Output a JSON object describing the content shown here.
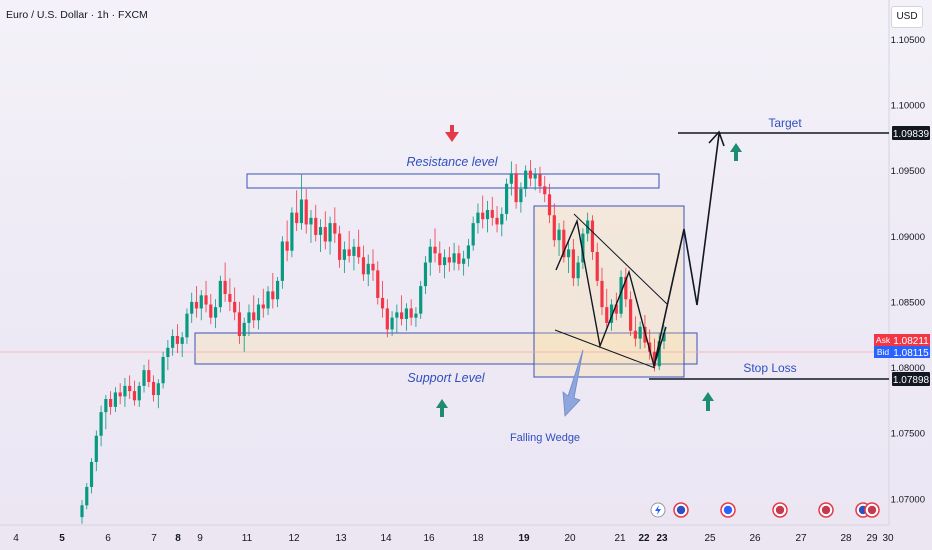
{
  "header": {
    "title": "Euro / U.S. Dollar · 1h · FXCM",
    "currency": "USD"
  },
  "chart_data": {
    "type": "candlestick",
    "instrument": "Euro / U.S. Dollar",
    "timeframe": "1h",
    "source": "FXCM",
    "ylim": [
      1.068,
      1.108
    ],
    "y_ticks": [
      "1.10500",
      "1.10000",
      "1.09500",
      "1.09000",
      "1.08500",
      "1.08000",
      "1.07500",
      "1.07000"
    ],
    "x_ticks": [
      "4",
      "5",
      "6",
      "7",
      "8",
      "9",
      "11",
      "12",
      "13",
      "14",
      "16",
      "18",
      "19",
      "20",
      "21",
      "22",
      "23",
      "25",
      "26",
      "27",
      "28",
      "29",
      "30"
    ],
    "x_bold_ticks": [
      "5",
      "8",
      "19",
      "22",
      "23"
    ],
    "price_markers": {
      "ask_label": "Ask",
      "ask": "1.08211",
      "bid_label": "Bid",
      "bid": "1.08115",
      "target": "1.09839",
      "stop_loss": "1.07898"
    },
    "annotations": {
      "resistance": "Resistance level",
      "support": "Support Level",
      "falling_wedge": "Falling Wedge",
      "target": "Target",
      "stop_loss": "Stop Loss"
    },
    "candles": [
      [
        1.0686,
        1.0699,
        1.0681,
        1.0695
      ],
      [
        1.0695,
        1.0712,
        1.0692,
        1.0709
      ],
      [
        1.0709,
        1.0731,
        1.0704,
        1.0728
      ],
      [
        1.0728,
        1.0752,
        1.0721,
        1.0748
      ],
      [
        1.0748,
        1.0771,
        1.074,
        1.0766
      ],
      [
        1.0766,
        1.0779,
        1.0753,
        1.0776
      ],
      [
        1.0776,
        1.0782,
        1.0764,
        1.077
      ],
      [
        1.077,
        1.0785,
        1.0766,
        1.0781
      ],
      [
        1.0781,
        1.0788,
        1.0772,
        1.0778
      ],
      [
        1.0778,
        1.0792,
        1.077,
        1.0786
      ],
      [
        1.0786,
        1.0794,
        1.0776,
        1.0782
      ],
      [
        1.0782,
        1.079,
        1.0771,
        1.0775
      ],
      [
        1.0775,
        1.0789,
        1.077,
        1.0786
      ],
      [
        1.0786,
        1.0802,
        1.0781,
        1.0798
      ],
      [
        1.0798,
        1.0806,
        1.0785,
        1.0789
      ],
      [
        1.0789,
        1.0794,
        1.0774,
        1.0779
      ],
      [
        1.0779,
        1.0791,
        1.0769,
        1.0788
      ],
      [
        1.0788,
        1.0812,
        1.0784,
        1.0808
      ],
      [
        1.0808,
        1.0821,
        1.0798,
        1.0815
      ],
      [
        1.0815,
        1.0829,
        1.0809,
        1.0824
      ],
      [
        1.0824,
        1.0833,
        1.0811,
        1.0818
      ],
      [
        1.0818,
        1.0827,
        1.0808,
        1.0823
      ],
      [
        1.0823,
        1.0845,
        1.0818,
        1.0841
      ],
      [
        1.0841,
        1.0857,
        1.0834,
        1.085
      ],
      [
        1.085,
        1.0862,
        1.0838,
        1.0845
      ],
      [
        1.0845,
        1.0859,
        1.0836,
        1.0855
      ],
      [
        1.0855,
        1.0866,
        1.0842,
        1.0848
      ],
      [
        1.0848,
        1.0856,
        1.0833,
        1.0838
      ],
      [
        1.0838,
        1.0852,
        1.083,
        1.0846
      ],
      [
        1.0846,
        1.087,
        1.0842,
        1.0866
      ],
      [
        1.0866,
        1.088,
        1.085,
        1.0856
      ],
      [
        1.0856,
        1.0868,
        1.0843,
        1.085
      ],
      [
        1.085,
        1.0861,
        1.0836,
        1.0842
      ],
      [
        1.0842,
        1.085,
        1.0818,
        1.0824
      ],
      [
        1.0824,
        1.0838,
        1.0812,
        1.0834
      ],
      [
        1.0834,
        1.0848,
        1.0824,
        1.0842
      ],
      [
        1.0842,
        1.0855,
        1.083,
        1.0836
      ],
      [
        1.0836,
        1.0853,
        1.0829,
        1.0848
      ],
      [
        1.0848,
        1.086,
        1.0838,
        1.0845
      ],
      [
        1.0845,
        1.0862,
        1.084,
        1.0858
      ],
      [
        1.0858,
        1.0872,
        1.0845,
        1.0852
      ],
      [
        1.0852,
        1.0869,
        1.0846,
        1.0866
      ],
      [
        1.0866,
        1.09,
        1.086,
        1.0896
      ],
      [
        1.0896,
        1.0912,
        1.0881,
        1.0889
      ],
      [
        1.0889,
        1.0922,
        1.0884,
        1.0918
      ],
      [
        1.0918,
        1.0935,
        1.0904,
        1.091
      ],
      [
        1.091,
        1.0947,
        1.0905,
        1.0928
      ],
      [
        1.0928,
        1.0936,
        1.0902,
        1.0909
      ],
      [
        1.0909,
        1.092,
        1.0895,
        1.0914
      ],
      [
        1.0914,
        1.0924,
        1.0896,
        1.0901
      ],
      [
        1.0901,
        1.0913,
        1.0888,
        1.0907
      ],
      [
        1.0907,
        1.0919,
        1.089,
        1.0896
      ],
      [
        1.0896,
        1.0915,
        1.0886,
        1.091
      ],
      [
        1.091,
        1.0922,
        1.0895,
        1.0902
      ],
      [
        1.0902,
        1.0908,
        1.0876,
        1.0882
      ],
      [
        1.0882,
        1.0896,
        1.0872,
        1.089
      ],
      [
        1.089,
        1.0904,
        1.088,
        1.0885
      ],
      [
        1.0885,
        1.0898,
        1.0874,
        1.0892
      ],
      [
        1.0892,
        1.0905,
        1.0879,
        1.0884
      ],
      [
        1.0884,
        1.0893,
        1.0866,
        1.0871
      ],
      [
        1.0871,
        1.0886,
        1.0862,
        1.0879
      ],
      [
        1.0879,
        1.089,
        1.0866,
        1.0874
      ],
      [
        1.0874,
        1.0881,
        1.0848,
        1.0853
      ],
      [
        1.0853,
        1.0866,
        1.0838,
        1.0845
      ],
      [
        1.0845,
        1.0852,
        1.0823,
        1.0829
      ],
      [
        1.0829,
        1.0843,
        1.0824,
        1.0838
      ],
      [
        1.0838,
        1.0848,
        1.0826,
        1.0842
      ],
      [
        1.0842,
        1.0855,
        1.0832,
        1.0837
      ],
      [
        1.0837,
        1.0849,
        1.0828,
        1.0845
      ],
      [
        1.0845,
        1.0852,
        1.0832,
        1.0838
      ],
      [
        1.0838,
        1.0846,
        1.0831,
        1.0841
      ],
      [
        1.0841,
        1.0866,
        1.0837,
        1.0862
      ],
      [
        1.0862,
        1.0885,
        1.0856,
        1.088
      ],
      [
        1.088,
        1.0898,
        1.087,
        1.0892
      ],
      [
        1.0892,
        1.0906,
        1.088,
        1.0887
      ],
      [
        1.0887,
        1.0896,
        1.0872,
        1.0878
      ],
      [
        1.0878,
        1.089,
        1.0868,
        1.0884
      ],
      [
        1.0884,
        1.0892,
        1.0873,
        1.088
      ],
      [
        1.088,
        1.0895,
        1.0874,
        1.0887
      ],
      [
        1.0887,
        1.0893,
        1.0874,
        1.0879
      ],
      [
        1.0879,
        1.0889,
        1.087,
        1.0883
      ],
      [
        1.0883,
        1.0898,
        1.0877,
        1.0893
      ],
      [
        1.0893,
        1.0915,
        1.0889,
        1.091
      ],
      [
        1.091,
        1.0925,
        1.0902,
        1.0918
      ],
      [
        1.0918,
        1.0931,
        1.0906,
        1.0913
      ],
      [
        1.0913,
        1.0927,
        1.0903,
        1.092
      ],
      [
        1.092,
        1.093,
        1.0908,
        1.0914
      ],
      [
        1.0914,
        1.0923,
        1.0903,
        1.0909
      ],
      [
        1.0909,
        1.0922,
        1.09,
        1.0917
      ],
      [
        1.0917,
        1.0944,
        1.0912,
        1.094
      ],
      [
        1.094,
        1.0957,
        1.0931,
        1.0948
      ],
      [
        1.0948,
        1.0955,
        1.0921,
        1.0926
      ],
      [
        1.0926,
        1.0941,
        1.0918,
        1.0936
      ],
      [
        1.0936,
        1.0954,
        1.093,
        1.095
      ],
      [
        1.095,
        1.0958,
        1.0938,
        1.0944
      ],
      [
        1.0944,
        1.0952,
        1.0935,
        1.0947
      ],
      [
        1.0947,
        1.0953,
        1.0933,
        1.0938
      ],
      [
        1.0938,
        1.0946,
        1.0926,
        1.0932
      ],
      [
        1.0932,
        1.094,
        1.091,
        1.0916
      ],
      [
        1.0916,
        1.0925,
        1.0892,
        1.0897
      ],
      [
        1.0897,
        1.091,
        1.0885,
        1.0905
      ],
      [
        1.0905,
        1.0912,
        1.088,
        1.0884
      ],
      [
        1.0884,
        1.0896,
        1.0872,
        1.089
      ],
      [
        1.089,
        1.0898,
        1.0862,
        1.0868
      ],
      [
        1.0868,
        1.0885,
        1.0862,
        1.088
      ],
      [
        1.088,
        1.0906,
        1.0875,
        1.0902
      ],
      [
        1.0902,
        1.0918,
        1.0896,
        1.0912
      ],
      [
        1.0912,
        1.0916,
        1.0882,
        1.0888
      ],
      [
        1.0888,
        1.0895,
        1.0862,
        1.0866
      ],
      [
        1.0866,
        1.0876,
        1.084,
        1.0846
      ],
      [
        1.0846,
        1.086,
        1.083,
        1.0834
      ],
      [
        1.0834,
        1.0852,
        1.0828,
        1.0848
      ],
      [
        1.0848,
        1.0857,
        1.0836,
        1.0841
      ],
      [
        1.0841,
        1.0874,
        1.0838,
        1.0869
      ],
      [
        1.0869,
        1.0876,
        1.0846,
        1.0852
      ],
      [
        1.0852,
        1.0858,
        1.0824,
        1.0828
      ],
      [
        1.0828,
        1.0839,
        1.0816,
        1.0822
      ],
      [
        1.0822,
        1.0835,
        1.0814,
        1.0831
      ],
      [
        1.0831,
        1.084,
        1.0815,
        1.0819
      ],
      [
        1.0819,
        1.0829,
        1.0806,
        1.0812
      ],
      [
        1.0812,
        1.0822,
        1.0797,
        1.0801
      ],
      [
        1.0801,
        1.0826,
        1.0798,
        1.082
      ],
      [
        1.082,
        1.0832,
        1.0814,
        1.0826
      ]
    ]
  }
}
